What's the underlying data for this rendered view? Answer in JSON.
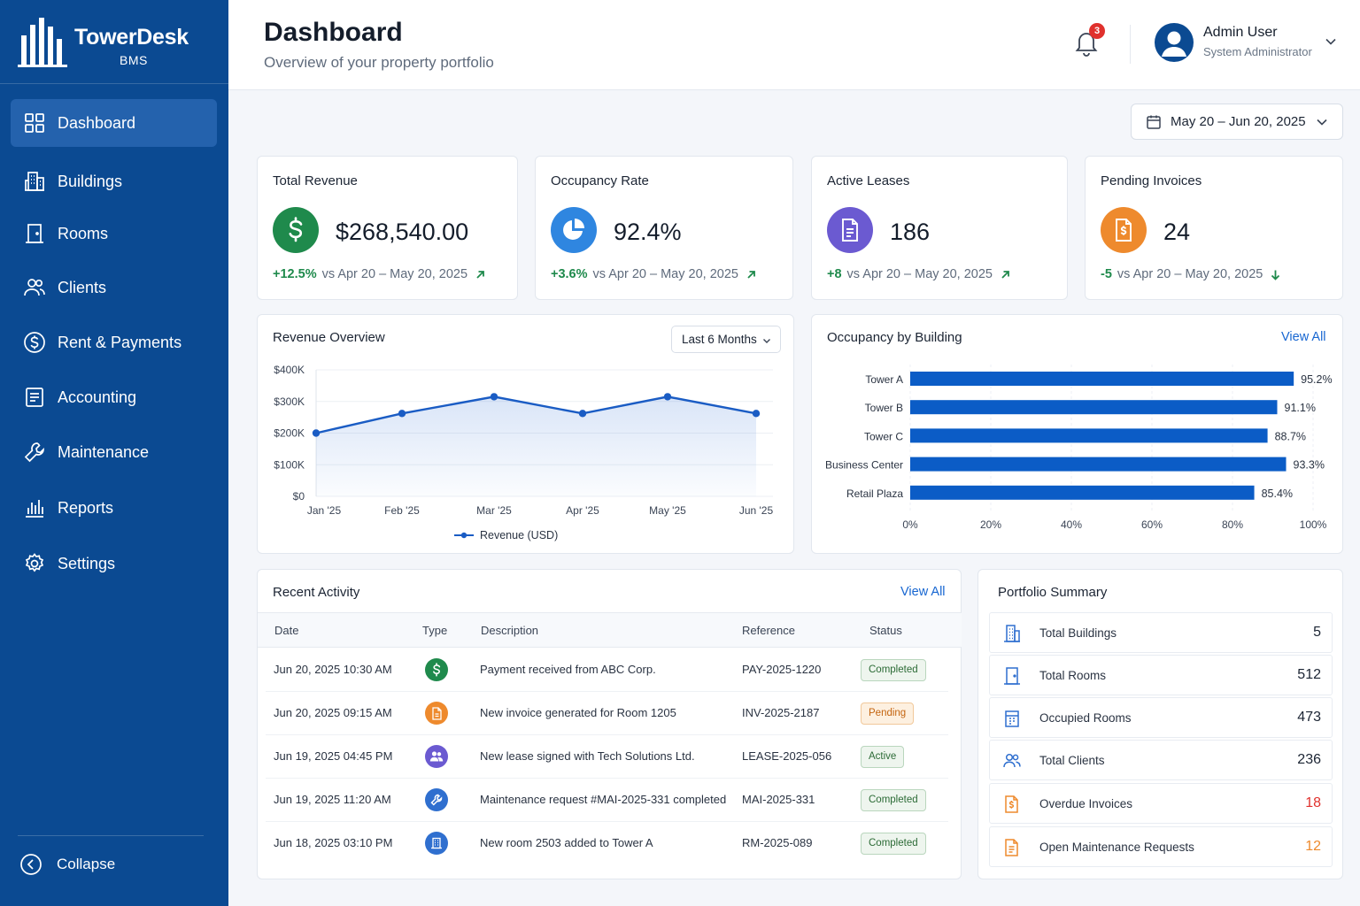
{
  "brand": {
    "name": "TowerDesk",
    "sub": "BMS"
  },
  "sidebar": {
    "items": [
      {
        "label": "Dashboard",
        "icon": "grid-icon",
        "active": true
      },
      {
        "label": "Buildings",
        "icon": "building-icon"
      },
      {
        "label": "Rooms",
        "icon": "door-icon"
      },
      {
        "label": "Clients",
        "icon": "users-icon"
      },
      {
        "label": "Rent & Payments",
        "icon": "dollar-icon"
      },
      {
        "label": "Accounting",
        "icon": "ledger-icon"
      },
      {
        "label": "Maintenance",
        "icon": "wrench-icon"
      },
      {
        "label": "Reports",
        "icon": "bar-chart-icon"
      },
      {
        "label": "Settings",
        "icon": "gear-icon"
      }
    ],
    "collapse_label": "Collapse"
  },
  "header": {
    "title": "Dashboard",
    "subtitle": "Overview of your property portfolio",
    "notifications": "3",
    "user": {
      "name": "Admin User",
      "role": "System Administrator"
    }
  },
  "date_range": "May 20 – Jun 20, 2025",
  "kpis": [
    {
      "title": "Total Revenue",
      "value": "$268,540.00",
      "delta": "+12.5%",
      "compare": "vs Apr 20 – May 20, 2025",
      "color": "#1f8a4c",
      "delta_color": "#1f8a4c",
      "icon": "dollar-icon"
    },
    {
      "title": "Occupancy Rate",
      "value": "92.4%",
      "delta": "+3.6%",
      "compare": "vs Apr 20 – May 20, 2025",
      "color": "#2f86e0",
      "delta_color": "#1f8a4c",
      "icon": "pie-icon"
    },
    {
      "title": "Active Leases",
      "value": "186",
      "delta": "+8",
      "compare": "vs Apr 20 – May 20, 2025",
      "color": "#6b5ad1",
      "delta_color": "#1f8a4c",
      "icon": "document-icon"
    },
    {
      "title": "Pending Invoices",
      "value": "24",
      "delta": "-5",
      "compare": "vs Apr 20 – May 20, 2025",
      "color": "#ee8a2d",
      "delta_color": "#1f8a4c",
      "icon": "invoice-icon"
    }
  ],
  "revenue": {
    "title": "Revenue Overview",
    "period": "Last 6 Months",
    "chart_data": {
      "type": "line",
      "x": [
        "Jan '25",
        "Feb '25",
        "Mar '25",
        "Apr '25",
        "May '25",
        "Jun '25"
      ],
      "series": [
        {
          "name": "Revenue (USD)",
          "values": [
            200000,
            262000,
            315000,
            262000,
            315000,
            262000
          ]
        }
      ],
      "y_ticks": [
        "$0",
        "$100K",
        "$200K",
        "$300K",
        "$400K"
      ],
      "ylim": [
        0,
        400000
      ],
      "grid": true,
      "legend": "bottom"
    }
  },
  "occupancy": {
    "title": "Occupancy by Building",
    "view_all": "View All",
    "chart_data": {
      "type": "bar",
      "orientation": "horizontal",
      "categories": [
        "Tower A",
        "Tower B",
        "Tower C",
        "Business Center",
        "Retail Plaza"
      ],
      "values": [
        95.2,
        91.1,
        88.7,
        93.3,
        85.4
      ],
      "labels": [
        "95.2%",
        "91.1%",
        "88.7%",
        "93.3%",
        "85.4%"
      ],
      "x_ticks": [
        "0%",
        "20%",
        "40%",
        "60%",
        "80%",
        "100%"
      ],
      "xlim": [
        0,
        100
      ],
      "color": "#0b5cc6"
    }
  },
  "activity": {
    "title": "Recent Activity",
    "view_all": "View All",
    "columns": [
      "Date",
      "Type",
      "Description",
      "Reference",
      "Status"
    ],
    "rows": [
      {
        "date": "Jun 20, 2025 10:30 AM",
        "type": "payment",
        "icon": "dollar-icon",
        "color": "#1f8a4c",
        "description": "Payment received from ABC Corp.",
        "reference": "PAY-2025-1220",
        "status": "Completed",
        "status_class": "st-completed"
      },
      {
        "date": "Jun 20, 2025 09:15 AM",
        "type": "invoice",
        "icon": "invoice-icon",
        "color": "#ee8a2d",
        "description": "New invoice generated for Room 1205",
        "reference": "INV-2025-2187",
        "status": "Pending",
        "status_class": "st-pending"
      },
      {
        "date": "Jun 19, 2025 04:45 PM",
        "type": "lease",
        "icon": "users-icon",
        "color": "#6b5ad1",
        "description": "New lease signed with Tech Solutions Ltd.",
        "reference": "LEASE-2025-056",
        "status": "Active",
        "status_class": "st-active"
      },
      {
        "date": "Jun 19, 2025 11:20 AM",
        "type": "maintenance",
        "icon": "wrench-icon",
        "color": "#2f6fcf",
        "description": "Maintenance request #MAI-2025-331 completed",
        "reference": "MAI-2025-331",
        "status": "Completed",
        "status_class": "st-completed"
      },
      {
        "date": "Jun 18, 2025 03:10 PM",
        "type": "room",
        "icon": "building-icon",
        "color": "#2f6fcf",
        "description": "New room 2503 added to Tower A",
        "reference": "RM-2025-089",
        "status": "Completed",
        "status_class": "st-completed"
      }
    ]
  },
  "portfolio": {
    "title": "Portfolio Summary",
    "items": [
      {
        "label": "Total Buildings",
        "value": "5",
        "icon": "building-icon",
        "color": "#1b2433",
        "icon_color": "#2f6fcf"
      },
      {
        "label": "Total Rooms",
        "value": "512",
        "icon": "door-icon",
        "color": "#1b2433",
        "icon_color": "#2f6fcf"
      },
      {
        "label": "Occupied Rooms",
        "value": "473",
        "icon": "grid-room-icon",
        "color": "#1b2433",
        "icon_color": "#2f6fcf"
      },
      {
        "label": "Total Clients",
        "value": "236",
        "icon": "users-icon",
        "color": "#1b2433",
        "icon_color": "#2f6fcf"
      },
      {
        "label": "Overdue Invoices",
        "value": "18",
        "icon": "invoice-icon",
        "color": "#e0312d",
        "icon_color": "#ee8a2d"
      },
      {
        "label": "Open Maintenance Requests",
        "value": "12",
        "icon": "document-icon",
        "color": "#ee8a2d",
        "icon_color": "#ee8a2d"
      }
    ]
  }
}
